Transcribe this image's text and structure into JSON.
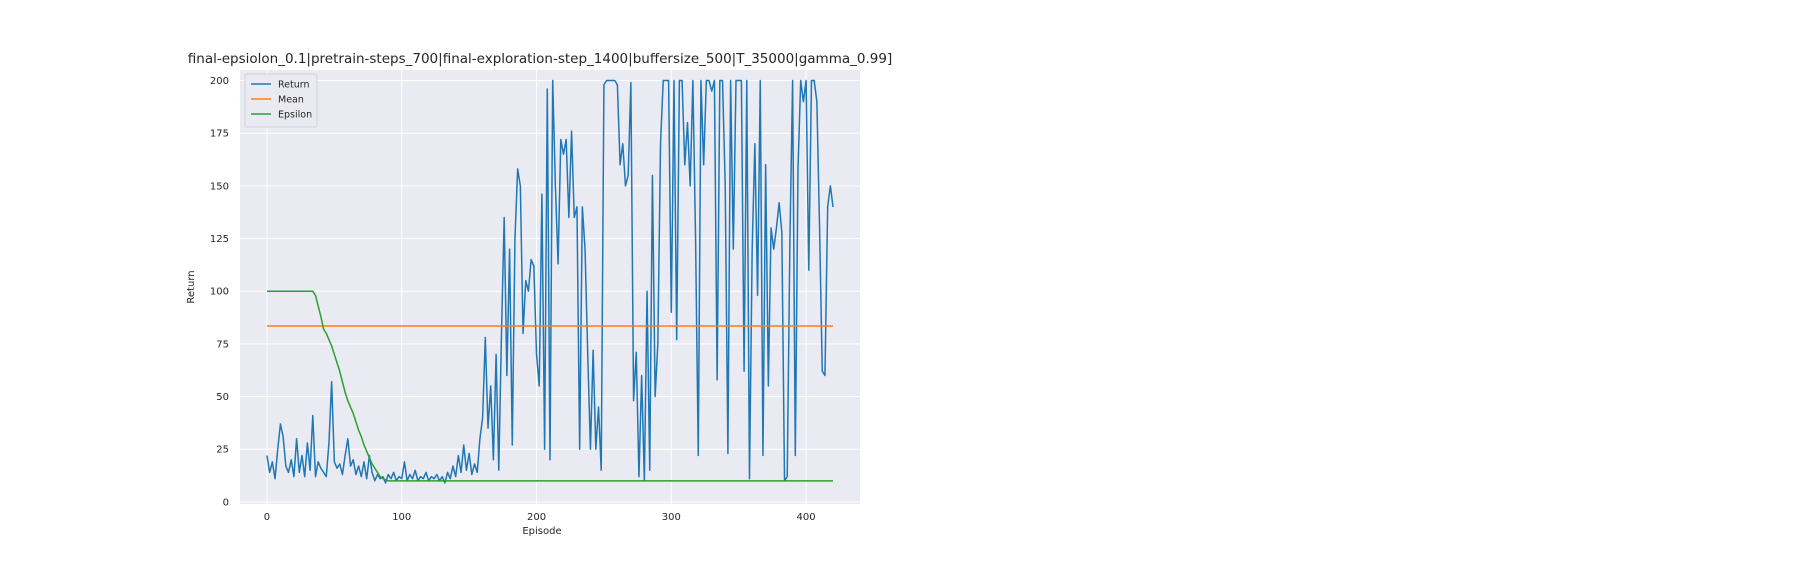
{
  "chart_data": {
    "type": "line",
    "title": "final-epsiolon_0.1|pretrain-steps_700|final-exploration-step_1400|buffersize_500|T_35000|gamma_0.99]",
    "xlabel": "Episode",
    "ylabel": "Return",
    "xlim": [
      -20,
      440
    ],
    "ylim": [
      -1,
      205
    ],
    "xticks": [
      0,
      100,
      200,
      300,
      400
    ],
    "yticks": [
      0,
      25,
      50,
      75,
      100,
      125,
      150,
      175,
      200
    ],
    "grid": true,
    "legend": "top-left",
    "series": [
      {
        "name": "Return",
        "color": "#1f77b4",
        "points": [
          [
            0,
            22
          ],
          [
            2,
            14
          ],
          [
            4,
            19
          ],
          [
            6,
            11
          ],
          [
            8,
            25
          ],
          [
            10,
            37
          ],
          [
            12,
            31
          ],
          [
            14,
            17
          ],
          [
            16,
            14
          ],
          [
            18,
            20
          ],
          [
            20,
            12
          ],
          [
            22,
            30
          ],
          [
            24,
            14
          ],
          [
            26,
            22
          ],
          [
            28,
            12
          ],
          [
            30,
            28
          ],
          [
            32,
            15
          ],
          [
            34,
            41
          ],
          [
            36,
            12
          ],
          [
            38,
            19
          ],
          [
            40,
            16
          ],
          [
            42,
            14
          ],
          [
            44,
            12
          ],
          [
            46,
            28
          ],
          [
            48,
            57
          ],
          [
            50,
            19
          ],
          [
            52,
            16
          ],
          [
            54,
            18
          ],
          [
            56,
            13
          ],
          [
            58,
            22
          ],
          [
            60,
            30
          ],
          [
            62,
            17
          ],
          [
            64,
            20
          ],
          [
            66,
            13
          ],
          [
            68,
            17
          ],
          [
            70,
            12
          ],
          [
            72,
            19
          ],
          [
            74,
            11
          ],
          [
            76,
            22
          ],
          [
            78,
            14
          ],
          [
            80,
            10
          ],
          [
            82,
            13
          ],
          [
            84,
            11
          ],
          [
            86,
            12
          ],
          [
            88,
            9
          ],
          [
            90,
            13
          ],
          [
            92,
            11
          ],
          [
            94,
            14
          ],
          [
            96,
            10
          ],
          [
            98,
            12
          ],
          [
            100,
            11
          ],
          [
            102,
            19
          ],
          [
            104,
            10
          ],
          [
            106,
            13
          ],
          [
            108,
            11
          ],
          [
            110,
            15
          ],
          [
            112,
            10
          ],
          [
            114,
            12
          ],
          [
            116,
            11
          ],
          [
            118,
            14
          ],
          [
            120,
            10
          ],
          [
            122,
            12
          ],
          [
            124,
            11
          ],
          [
            126,
            13
          ],
          [
            128,
            10
          ],
          [
            130,
            12
          ],
          [
            132,
            9
          ],
          [
            134,
            14
          ],
          [
            136,
            11
          ],
          [
            138,
            17
          ],
          [
            140,
            12
          ],
          [
            142,
            22
          ],
          [
            144,
            14
          ],
          [
            146,
            27
          ],
          [
            148,
            15
          ],
          [
            150,
            23
          ],
          [
            152,
            13
          ],
          [
            154,
            18
          ],
          [
            156,
            14
          ],
          [
            158,
            30
          ],
          [
            160,
            40
          ],
          [
            162,
            78
          ],
          [
            164,
            35
          ],
          [
            166,
            55
          ],
          [
            168,
            20
          ],
          [
            170,
            70
          ],
          [
            172,
            15
          ],
          [
            174,
            80
          ],
          [
            176,
            135
          ],
          [
            178,
            60
          ],
          [
            180,
            120
          ],
          [
            182,
            27
          ],
          [
            184,
            125
          ],
          [
            186,
            158
          ],
          [
            188,
            150
          ],
          [
            190,
            80
          ],
          [
            192,
            105
          ],
          [
            194,
            100
          ],
          [
            196,
            115
          ],
          [
            198,
            112
          ],
          [
            200,
            70
          ],
          [
            202,
            55
          ],
          [
            204,
            146
          ],
          [
            206,
            25
          ],
          [
            208,
            196
          ],
          [
            210,
            20
          ],
          [
            212,
            200
          ],
          [
            214,
            150
          ],
          [
            216,
            113
          ],
          [
            218,
            172
          ],
          [
            220,
            165
          ],
          [
            222,
            172
          ],
          [
            224,
            135
          ],
          [
            226,
            176
          ],
          [
            228,
            135
          ],
          [
            230,
            140
          ],
          [
            232,
            25
          ],
          [
            234,
            140
          ],
          [
            236,
            120
          ],
          [
            238,
            70
          ],
          [
            240,
            25
          ],
          [
            242,
            72
          ],
          [
            244,
            25
          ],
          [
            246,
            45
          ],
          [
            248,
            15
          ],
          [
            250,
            198
          ],
          [
            252,
            200
          ],
          [
            254,
            200
          ],
          [
            256,
            200
          ],
          [
            258,
            200
          ],
          [
            260,
            198
          ],
          [
            262,
            160
          ],
          [
            264,
            170
          ],
          [
            266,
            150
          ],
          [
            268,
            155
          ],
          [
            270,
            199
          ],
          [
            272,
            48
          ],
          [
            274,
            71
          ],
          [
            276,
            12
          ],
          [
            278,
            60
          ],
          [
            280,
            10
          ],
          [
            282,
            100
          ],
          [
            284,
            15
          ],
          [
            286,
            155
          ],
          [
            288,
            50
          ],
          [
            290,
            75
          ],
          [
            292,
            170
          ],
          [
            294,
            200
          ],
          [
            296,
            200
          ],
          [
            298,
            200
          ],
          [
            300,
            90
          ],
          [
            302,
            200
          ],
          [
            304,
            77
          ],
          [
            306,
            200
          ],
          [
            308,
            200
          ],
          [
            310,
            160
          ],
          [
            312,
            180
          ],
          [
            314,
            150
          ],
          [
            316,
            200
          ],
          [
            318,
            125
          ],
          [
            320,
            22
          ],
          [
            322,
            200
          ],
          [
            324,
            160
          ],
          [
            326,
            200
          ],
          [
            328,
            200
          ],
          [
            330,
            195
          ],
          [
            332,
            200
          ],
          [
            334,
            58
          ],
          [
            336,
            200
          ],
          [
            338,
            200
          ],
          [
            340,
            150
          ],
          [
            342,
            23
          ],
          [
            344,
            200
          ],
          [
            346,
            120
          ],
          [
            348,
            200
          ],
          [
            350,
            200
          ],
          [
            352,
            200
          ],
          [
            354,
            62
          ],
          [
            356,
            200
          ],
          [
            358,
            11
          ],
          [
            360,
            120
          ],
          [
            362,
            170
          ],
          [
            364,
            98
          ],
          [
            366,
            200
          ],
          [
            368,
            22
          ],
          [
            370,
            160
          ],
          [
            372,
            55
          ],
          [
            374,
            130
          ],
          [
            376,
            120
          ],
          [
            378,
            130
          ],
          [
            380,
            142
          ],
          [
            382,
            128
          ],
          [
            384,
            10
          ],
          [
            386,
            12
          ],
          [
            388,
            124
          ],
          [
            390,
            200
          ],
          [
            392,
            22
          ],
          [
            394,
            158
          ],
          [
            396,
            200
          ],
          [
            398,
            190
          ],
          [
            400,
            200
          ],
          [
            402,
            110
          ],
          [
            404,
            200
          ],
          [
            406,
            200
          ],
          [
            408,
            190
          ],
          [
            410,
            130
          ],
          [
            412,
            62
          ],
          [
            414,
            60
          ],
          [
            416,
            140
          ],
          [
            418,
            150
          ],
          [
            420,
            140
          ]
        ]
      },
      {
        "name": "Mean",
        "color": "#ff7f0e",
        "points": [
          [
            0,
            83.5
          ],
          [
            420,
            83.5
          ]
        ]
      },
      {
        "name": "Epsilon",
        "color": "#2ca02c",
        "points": [
          [
            0,
            100
          ],
          [
            34,
            100
          ],
          [
            36,
            98
          ],
          [
            38,
            93
          ],
          [
            40,
            88
          ],
          [
            42,
            82
          ],
          [
            44,
            80
          ],
          [
            46,
            77
          ],
          [
            48,
            74
          ],
          [
            50,
            70
          ],
          [
            52,
            66
          ],
          [
            54,
            62
          ],
          [
            56,
            57
          ],
          [
            58,
            52
          ],
          [
            60,
            48
          ],
          [
            62,
            45
          ],
          [
            64,
            42
          ],
          [
            66,
            38
          ],
          [
            68,
            34
          ],
          [
            70,
            31
          ],
          [
            72,
            27
          ],
          [
            74,
            24
          ],
          [
            76,
            21
          ],
          [
            78,
            18
          ],
          [
            80,
            16
          ],
          [
            82,
            14
          ],
          [
            84,
            12
          ],
          [
            86,
            11
          ],
          [
            88,
            10.5
          ],
          [
            90,
            10
          ],
          [
            420,
            10
          ]
        ]
      }
    ]
  }
}
